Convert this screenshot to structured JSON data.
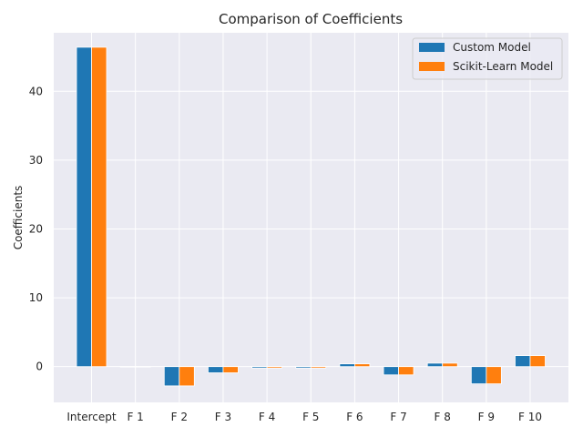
{
  "chart_data": {
    "type": "bar",
    "title": "Comparison of Coefficients",
    "xlabel": "",
    "ylabel": "Coefficients",
    "ylim": [
      -5.2,
      48.5
    ],
    "yticks": [
      0,
      10,
      20,
      30,
      40
    ],
    "grid": true,
    "legend_position": "top-right",
    "categories": [
      "Intercept",
      "F 1",
      "F 2",
      "F 3",
      "F 4",
      "F 5",
      "F 6",
      "F 7",
      "F 8",
      "F 9",
      "F 10"
    ],
    "series": [
      {
        "name": "Custom Model",
        "color": "#1f77b4",
        "values": [
          46.4,
          0.0,
          -2.8,
          -0.9,
          -0.2,
          -0.2,
          0.4,
          -1.2,
          0.5,
          -2.5,
          1.6
        ]
      },
      {
        "name": "Scikit-Learn Model",
        "color": "#ff7f0e",
        "values": [
          46.4,
          0.0,
          -2.8,
          -0.9,
          -0.2,
          -0.2,
          0.4,
          -1.2,
          0.5,
          -2.5,
          1.6
        ]
      }
    ]
  }
}
